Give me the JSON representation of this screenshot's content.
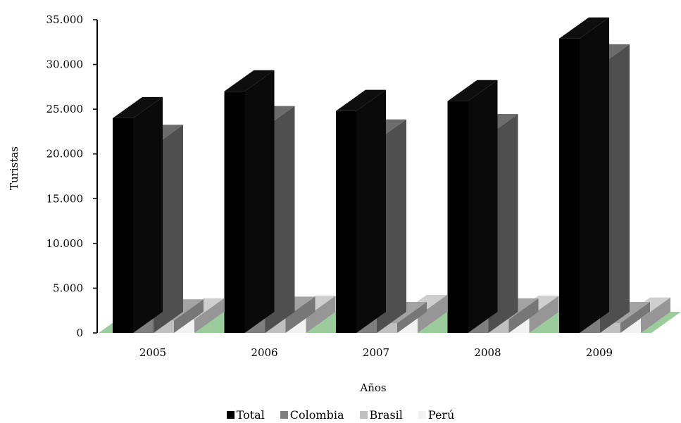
{
  "chart_data": {
    "type": "bar",
    "view": "3d-clustered-columns",
    "ylabel": "Turistas",
    "xlabel": "Años",
    "ylim": [
      0,
      35000
    ],
    "yticks": [
      "0",
      "5.000",
      "10.000",
      "15.000",
      "20.000",
      "25.000",
      "30.000",
      "35.000"
    ],
    "categories": [
      "2005",
      "2006",
      "2007",
      "2008",
      "2009"
    ],
    "series": [
      {
        "name": "Total",
        "color": "#000000",
        "values": [
          24000,
          27000,
          24800,
          25900,
          32900
        ]
      },
      {
        "name": "Colombia",
        "color": "#7f7f7f",
        "values": [
          20900,
          23000,
          21500,
          22100,
          29900
        ]
      },
      {
        "name": "Brasil",
        "color": "#c0c0c0",
        "values": [
          1400,
          1700,
          1100,
          1500,
          1100
        ]
      },
      {
        "name": "Perú",
        "color": "#f2f2f2",
        "values": [
          1500,
          1800,
          1900,
          1800,
          1600
        ]
      }
    ],
    "floor_color": "#9ccc9c",
    "legend_position": "bottom"
  }
}
